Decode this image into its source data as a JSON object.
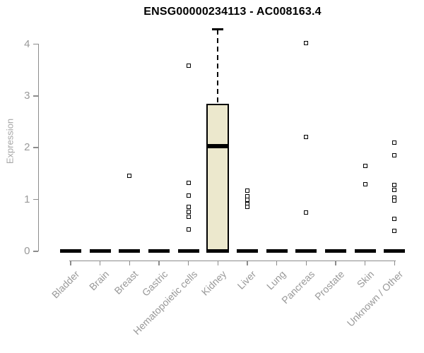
{
  "chart_data": {
    "type": "boxplot",
    "title": "ENSG00000234113 - AC008163.4",
    "xlabel": "",
    "ylabel": "Expression",
    "ylim": [
      0,
      4.3
    ],
    "yticks": [
      0,
      1,
      2,
      3,
      4
    ],
    "grid": false,
    "legend": false,
    "categories": [
      "Bladder",
      "Brain",
      "Breast",
      "Gastric",
      "Hematopoietic cells",
      "Kidney",
      "Liver",
      "Lung",
      "Pancreas",
      "Prostate",
      "Skin",
      "Unknown / Other"
    ],
    "boxes": [
      {
        "category": "Bladder",
        "q1": 0,
        "median": 0,
        "q3": 0,
        "whisker_low": 0,
        "whisker_high": 0,
        "outliers": []
      },
      {
        "category": "Brain",
        "q1": 0,
        "median": 0,
        "q3": 0,
        "whisker_low": 0,
        "whisker_high": 0,
        "outliers": []
      },
      {
        "category": "Breast",
        "q1": 0,
        "median": 0,
        "q3": 0,
        "whisker_low": 0,
        "whisker_high": 0,
        "outliers": [
          1.44
        ]
      },
      {
        "category": "Gastric",
        "q1": 0,
        "median": 0,
        "q3": 0,
        "whisker_low": 0,
        "whisker_high": 0,
        "outliers": []
      },
      {
        "category": "Hematopoietic cells",
        "q1": 0,
        "median": 0,
        "q3": 0,
        "whisker_low": 0,
        "whisker_high": 0,
        "outliers": [
          3.57,
          1.31,
          1.07,
          0.85,
          0.75,
          0.65,
          0.41
        ]
      },
      {
        "category": "Kidney",
        "q1": 0,
        "median": 2.02,
        "q3": 2.84,
        "whisker_low": 0,
        "whisker_high": 4.27,
        "outliers": []
      },
      {
        "category": "Liver",
        "q1": 0,
        "median": 0,
        "q3": 0,
        "whisker_low": 0,
        "whisker_high": 0,
        "outliers": [
          1.16,
          1.05,
          0.98,
          0.9,
          0.84
        ]
      },
      {
        "category": "Lung",
        "q1": 0,
        "median": 0,
        "q3": 0,
        "whisker_low": 0,
        "whisker_high": 0,
        "outliers": []
      },
      {
        "category": "Pancreas",
        "q1": 0,
        "median": 0,
        "q3": 0,
        "whisker_low": 0,
        "whisker_high": 0,
        "outliers": [
          4.01,
          2.2,
          0.74
        ]
      },
      {
        "category": "Prostate",
        "q1": 0,
        "median": 0,
        "q3": 0,
        "whisker_low": 0,
        "whisker_high": 0,
        "outliers": []
      },
      {
        "category": "Skin",
        "q1": 0,
        "median": 0,
        "q3": 0,
        "whisker_low": 0,
        "whisker_high": 0,
        "outliers": [
          1.63,
          1.28
        ]
      },
      {
        "category": "Unknown / Other",
        "q1": 0,
        "median": 0,
        "q3": 0,
        "whisker_low": 0,
        "whisker_high": 0,
        "outliers": [
          2.09,
          1.84,
          1.27,
          1.17,
          1.02,
          0.97,
          0.61,
          0.38
        ]
      }
    ],
    "colors": {
      "box_fill": "#ece8cd",
      "box_stroke": "#000000",
      "median": "#000000",
      "axis": "#8c8c8c",
      "tick_label": "#999999",
      "axis_label": "#a6a6a6",
      "title": "#000000",
      "background": "#ffffff"
    }
  }
}
